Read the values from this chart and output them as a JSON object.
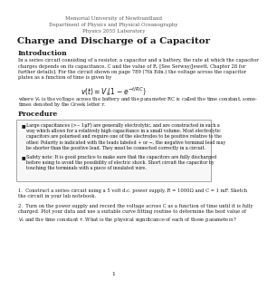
{
  "header_line1": "Memorial University of Newfoundland",
  "header_line2": "Department of Physics and Physical Oceanography",
  "header_line3": "Physics 2055 Laboratory",
  "title": "Charge and Discharge of a Capacitor",
  "section1": "Introduction",
  "section2": "Procedure",
  "intro_lines": [
    "In a series circuit consisting of a resistor, a capacitor and a battery, the rate at which the capacitor",
    "charges depends on its capacitance, C and the value of R. [See Serway/Jewett, Chapter 28 for",
    "further details]. For the circuit shown on page 789 (7th Edn.) the voltage across the capacitor",
    "plates as a function of time is given by"
  ],
  "after_formula_lines": [
    "where $V_s$ is the voltage across the battery and the parameter RC is called the time constant, some-",
    "times denoted by the Greek letter $\\tau$."
  ],
  "bullet1_lines": [
    "Large capacitances (>~ 1μF) are generally electrolytic, and are constructed in such a",
    "way which allows for a relatively high capacitance in a small volume. Most electrolytic",
    "capacitors are polarised and require one of the electrodes to be positive relative to the",
    "other. Polarity is indicated with the leads labeled + or −, the negative terminal lead may",
    "be shorter than the positive lead. They must be connected correctly in a circuit."
  ],
  "bullet2_lines": [
    "Safety note: It is good practice to make sure that the capacitors are fully discharged",
    "before using to avoid the possibility of electric shock. Short circuit the capacitor by",
    "touching the terminals with a piece of insulated wire."
  ],
  "item1_lines": [
    "1.  Construct a series circuit using a 5 volt d.c. power supply, R = 1000Ω and C = 1 mF. Sketch",
    "the circuit in your lab notebook."
  ],
  "item2_lines": [
    "2.  Turn on the power supply and record the voltage across C as a function of time until it is fully",
    "charged. Plot your data and use a suitable curve fitting routine to determine the best value of",
    "$V_s$ and the time constant $\\tau$. What is the physical significance of each of these parameters?"
  ],
  "page_number": "1",
  "bg_color": "#ffffff",
  "text_color": "#1a1a1a",
  "header_color": "#555555"
}
